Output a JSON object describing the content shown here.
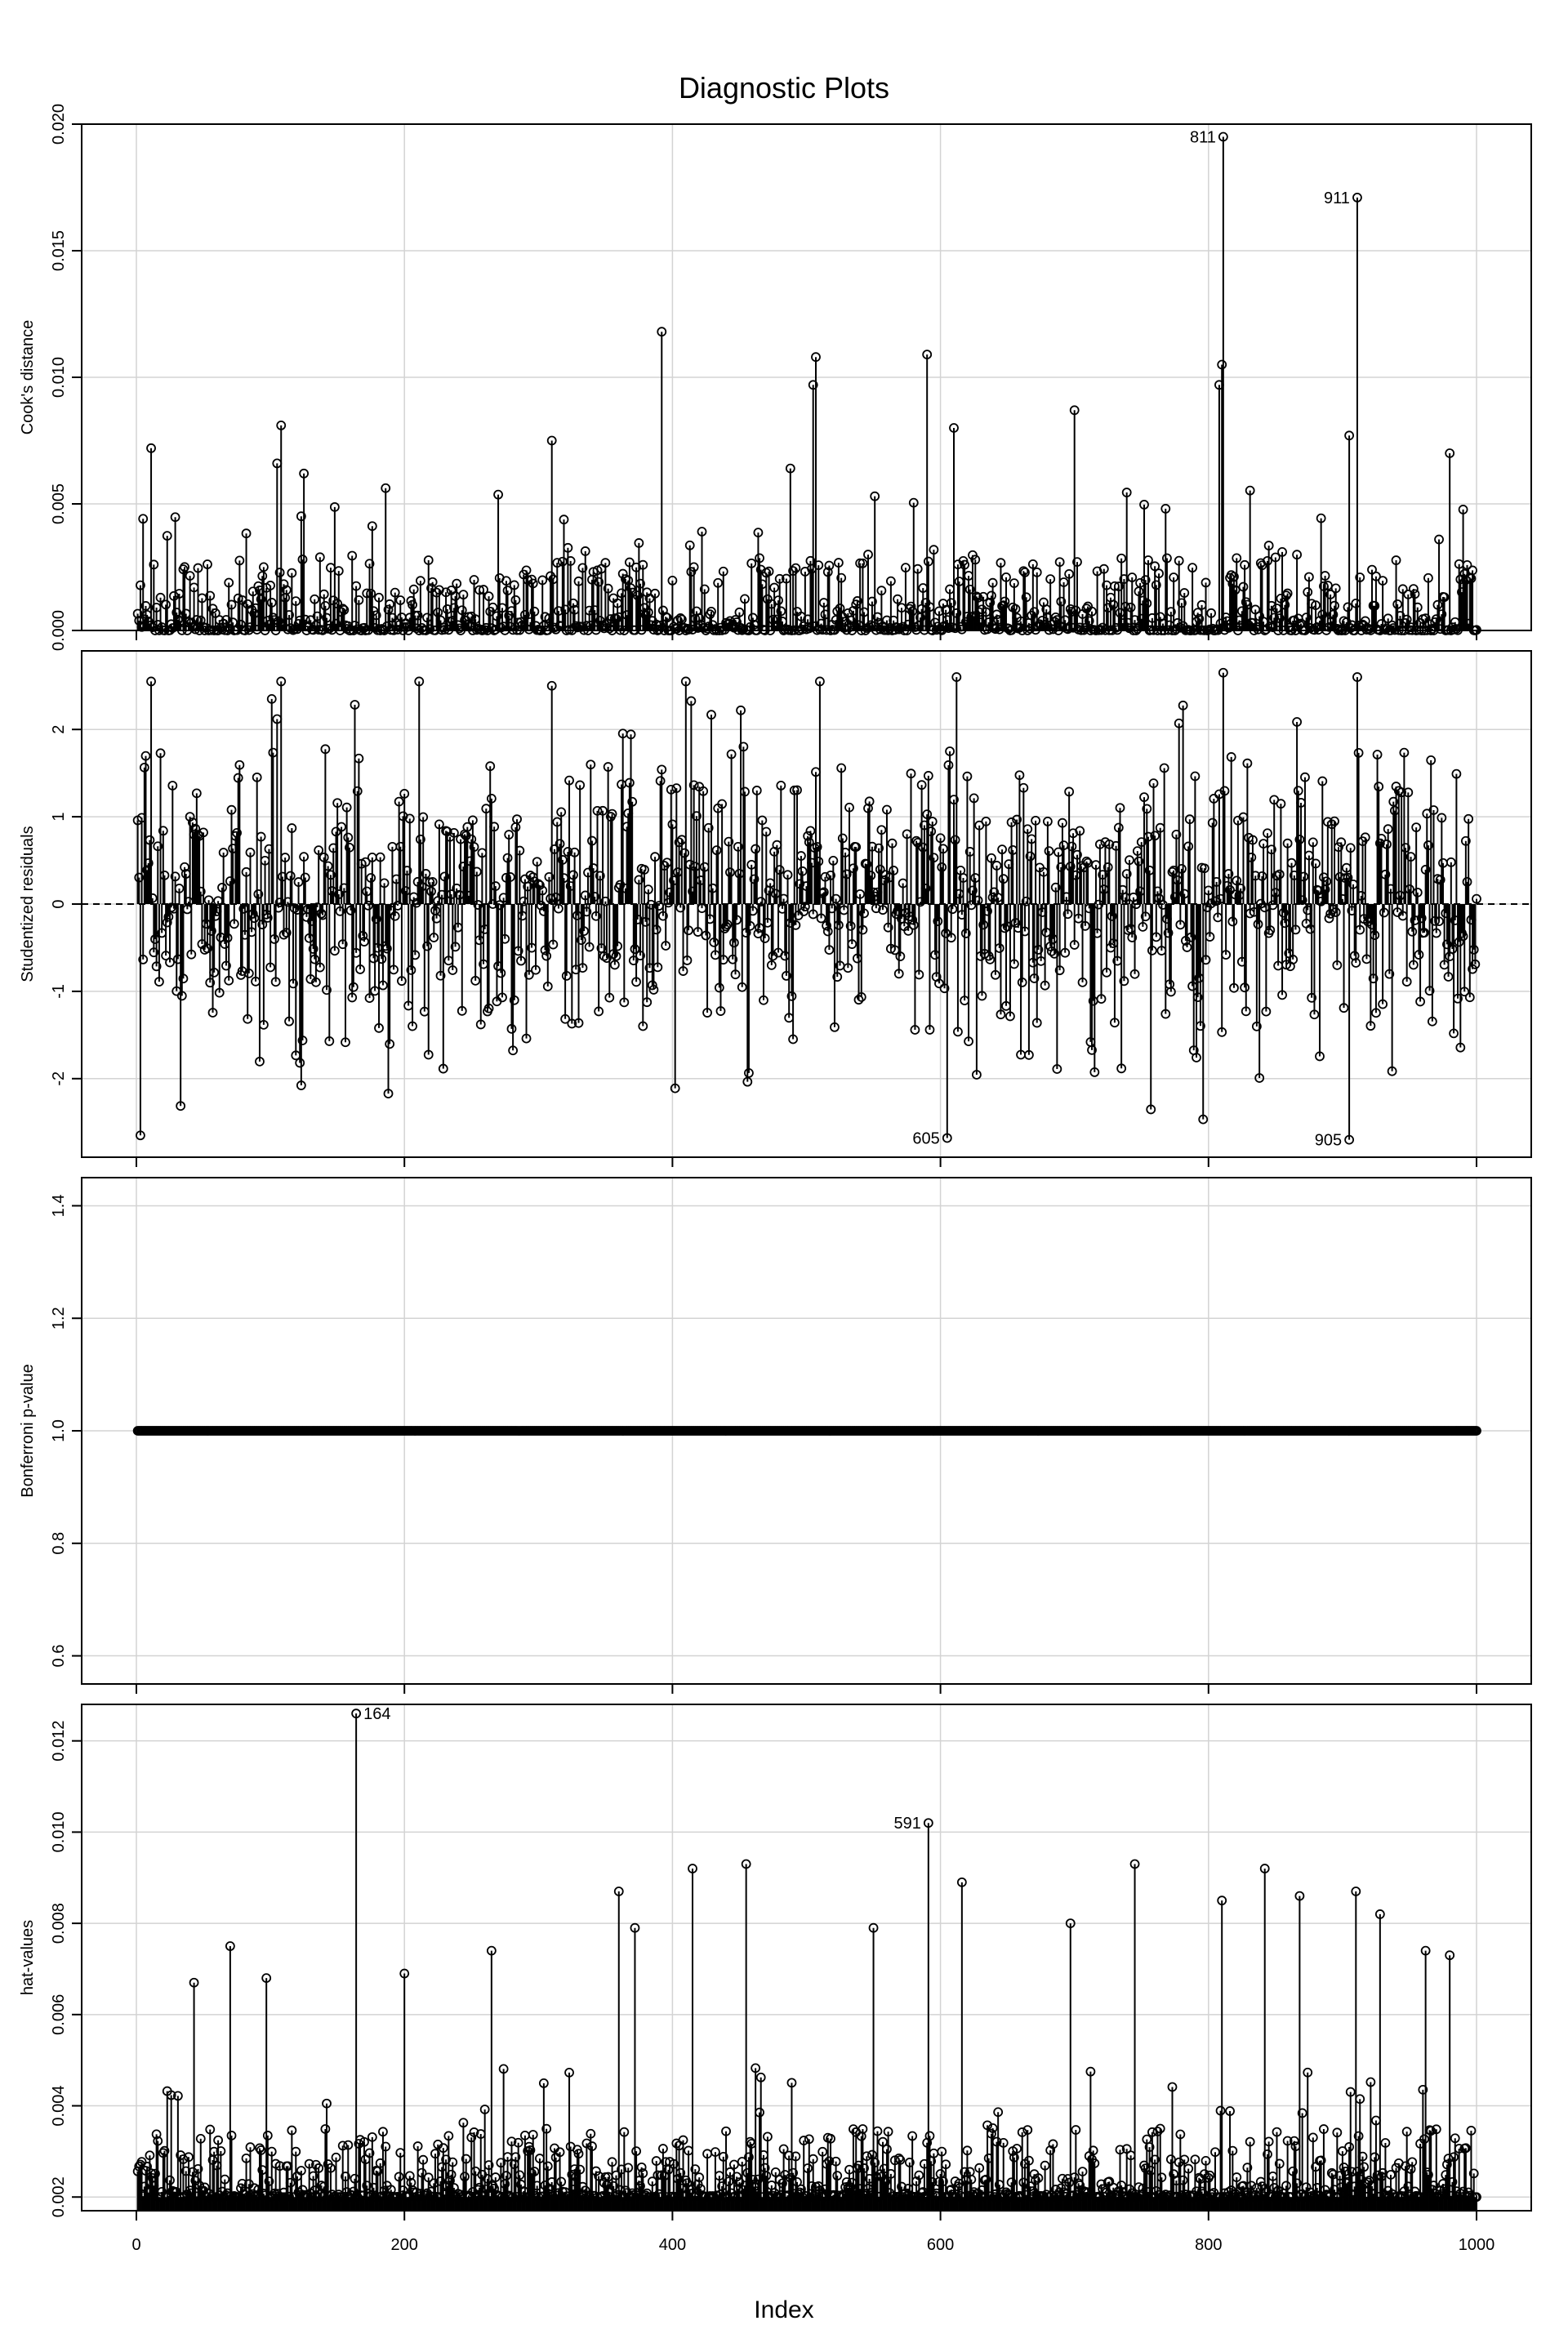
{
  "title": "Diagnostic Plots",
  "xlabel": "Index",
  "chart_data": [
    {
      "type": "scatter",
      "style": "needle plot with open circle markers",
      "ylabel": "Cook's distance",
      "xlim": [
        0,
        1000
      ],
      "ylim": [
        0,
        0.02
      ],
      "xticks": [
        "0",
        "200",
        "400",
        "600",
        "800",
        "1000"
      ],
      "yticks": [
        "0.000",
        "0.005",
        "0.010",
        "0.015",
        "0.020"
      ],
      "ytick_values": [
        0,
        0.005,
        0.01,
        0.015,
        0.02
      ],
      "grid": true,
      "n_points": 1000,
      "typical_range": [
        0,
        0.003
      ],
      "notable_points": [
        {
          "x": 11,
          "y": 0.0072
        },
        {
          "x": 105,
          "y": 0.0066
        },
        {
          "x": 108,
          "y": 0.0081
        },
        {
          "x": 125,
          "y": 0.0062
        },
        {
          "x": 310,
          "y": 0.0075
        },
        {
          "x": 392,
          "y": 0.0118
        },
        {
          "x": 488,
          "y": 0.0064
        },
        {
          "x": 505,
          "y": 0.0097
        },
        {
          "x": 507,
          "y": 0.0108
        },
        {
          "x": 590,
          "y": 0.0109
        },
        {
          "x": 610,
          "y": 0.008
        },
        {
          "x": 700,
          "y": 0.0087
        },
        {
          "x": 808,
          "y": 0.0097
        },
        {
          "x": 810,
          "y": 0.0105
        },
        {
          "x": 811,
          "y": 0.0195
        },
        {
          "x": 905,
          "y": 0.0077
        },
        {
          "x": 911,
          "y": 0.0171
        },
        {
          "x": 980,
          "y": 0.007
        }
      ],
      "labels": [
        {
          "text": "811",
          "x": 811,
          "y": 0.0195
        },
        {
          "text": "911",
          "x": 911,
          "y": 0.0171
        }
      ]
    },
    {
      "type": "scatter",
      "style": "needle plot with open circle markers, dashed zero reference line",
      "ylabel": "Studentized residuals",
      "xlim": [
        0,
        1000
      ],
      "ylim": [
        -2.9,
        2.9
      ],
      "xticks": [
        "0",
        "200",
        "400",
        "600",
        "800",
        "1000"
      ],
      "yticks": [
        "-2",
        "-1",
        "0",
        "1",
        "2"
      ],
      "ytick_values": [
        -2,
        -1,
        0,
        1,
        2
      ],
      "grid": true,
      "reference_line": 0,
      "n_points": 1000,
      "typical_range": [
        -2.7,
        2.65
      ],
      "notable_points": [
        {
          "x": 3,
          "y": -2.65
        },
        {
          "x": 11,
          "y": 2.55
        },
        {
          "x": 108,
          "y": 2.55
        },
        {
          "x": 211,
          "y": 2.55
        },
        {
          "x": 310,
          "y": 2.5
        },
        {
          "x": 410,
          "y": 2.55
        },
        {
          "x": 510,
          "y": 2.55
        },
        {
          "x": 605,
          "y": -2.68
        },
        {
          "x": 612,
          "y": 2.6
        },
        {
          "x": 811,
          "y": 2.65
        },
        {
          "x": 905,
          "y": -2.7
        },
        {
          "x": 911,
          "y": 2.6
        }
      ],
      "labels": [
        {
          "text": "605",
          "x": 605,
          "y": -2.68
        },
        {
          "text": "905",
          "x": 905,
          "y": -2.7
        }
      ]
    },
    {
      "type": "scatter",
      "style": "needle plot with open circle markers",
      "ylabel": "Bonferroni p-value",
      "xlim": [
        0,
        1000
      ],
      "ylim": [
        0.55,
        1.45
      ],
      "xticks": [
        "0",
        "200",
        "400",
        "600",
        "800",
        "1000"
      ],
      "yticks": [
        "0.6",
        "0.8",
        "1.0",
        "1.2",
        "1.4"
      ],
      "ytick_values": [
        0.6,
        0.8,
        1.0,
        1.2,
        1.4
      ],
      "grid": true,
      "n_points": 1000,
      "constant_value": 1.0
    },
    {
      "type": "scatter",
      "style": "needle plot with open circle markers",
      "ylabel": "hat-values",
      "xlim": [
        0,
        1000
      ],
      "ylim": [
        0.0017,
        0.0128
      ],
      "xticks": [
        "0",
        "200",
        "400",
        "600",
        "800",
        "1000"
      ],
      "yticks": [
        "0.002",
        "0.004",
        "0.006",
        "0.008",
        "0.010",
        "0.012"
      ],
      "ytick_values": [
        0.002,
        0.004,
        0.006,
        0.008,
        0.01,
        0.012
      ],
      "grid": true,
      "n_points": 1000,
      "typical_range": [
        0.002,
        0.0035
      ],
      "notable_points": [
        {
          "x": 43,
          "y": 0.0067
        },
        {
          "x": 70,
          "y": 0.0075
        },
        {
          "x": 97,
          "y": 0.0068
        },
        {
          "x": 164,
          "y": 0.0126
        },
        {
          "x": 200,
          "y": 0.0069
        },
        {
          "x": 265,
          "y": 0.0074
        },
        {
          "x": 360,
          "y": 0.0087
        },
        {
          "x": 372,
          "y": 0.0079
        },
        {
          "x": 415,
          "y": 0.0092
        },
        {
          "x": 455,
          "y": 0.0093
        },
        {
          "x": 550,
          "y": 0.0079
        },
        {
          "x": 591,
          "y": 0.0102
        },
        {
          "x": 616,
          "y": 0.0089
        },
        {
          "x": 697,
          "y": 0.008
        },
        {
          "x": 745,
          "y": 0.0093
        },
        {
          "x": 810,
          "y": 0.0085
        },
        {
          "x": 842,
          "y": 0.0092
        },
        {
          "x": 868,
          "y": 0.0086
        },
        {
          "x": 910,
          "y": 0.0087
        },
        {
          "x": 928,
          "y": 0.0082
        },
        {
          "x": 962,
          "y": 0.0074
        },
        {
          "x": 980,
          "y": 0.0073
        }
      ],
      "labels": [
        {
          "text": "164",
          "x": 164,
          "y": 0.0126
        },
        {
          "text": "591",
          "x": 591,
          "y": 0.0102
        }
      ]
    }
  ]
}
